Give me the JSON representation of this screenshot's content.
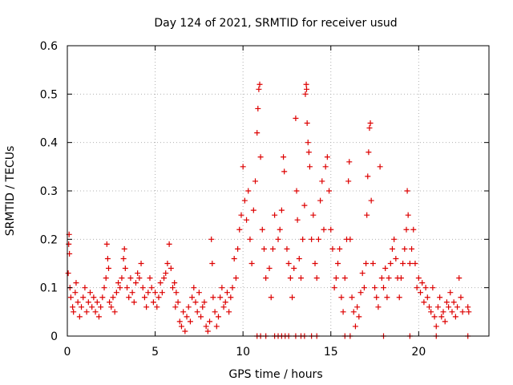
{
  "chart_data": {
    "type": "scatter",
    "title": "Day 124 of 2021, SRMTID for receiver usud",
    "xlabel": "GPS time / hours",
    "ylabel": "SRMTID / TECUs",
    "xlim": [
      0,
      24
    ],
    "ylim": [
      0,
      0.6
    ],
    "xticks": [
      0,
      5,
      10,
      15,
      20
    ],
    "xtick_labels": [
      "0",
      "5",
      "10",
      "15",
      "20"
    ],
    "yticks": [
      0,
      0.1,
      0.2,
      0.3,
      0.4,
      0.5,
      0.6
    ],
    "ytick_labels": [
      "0",
      "0.1",
      "0.2",
      "0.3",
      "0.4",
      "0.5",
      "0.6"
    ],
    "grid": true,
    "marker": "+",
    "marker_color": "#dd0000",
    "series": [
      {
        "name": "SRMTID",
        "points": [
          [
            0.05,
            0.13
          ],
          [
            0.08,
            0.19
          ],
          [
            0.1,
            0.21
          ],
          [
            0.12,
            0.17
          ],
          [
            0.15,
            0.1
          ],
          [
            0.2,
            0.08
          ],
          [
            0.3,
            0.06
          ],
          [
            0.35,
            0.05
          ],
          [
            0.45,
            0.09
          ],
          [
            0.5,
            0.11
          ],
          [
            0.6,
            0.07
          ],
          [
            0.7,
            0.04
          ],
          [
            0.8,
            0.06
          ],
          [
            0.9,
            0.08
          ],
          [
            1.0,
            0.1
          ],
          [
            1.1,
            0.05
          ],
          [
            1.2,
            0.07
          ],
          [
            1.3,
            0.09
          ],
          [
            1.4,
            0.06
          ],
          [
            1.5,
            0.08
          ],
          [
            1.6,
            0.05
          ],
          [
            1.7,
            0.07
          ],
          [
            1.8,
            0.04
          ],
          [
            1.9,
            0.06
          ],
          [
            2.0,
            0.08
          ],
          [
            2.1,
            0.1
          ],
          [
            2.2,
            0.12
          ],
          [
            2.25,
            0.19
          ],
          [
            2.3,
            0.16
          ],
          [
            2.35,
            0.14
          ],
          [
            2.4,
            0.07
          ],
          [
            2.5,
            0.06
          ],
          [
            2.6,
            0.08
          ],
          [
            2.7,
            0.05
          ],
          [
            2.8,
            0.09
          ],
          [
            2.9,
            0.11
          ],
          [
            3.0,
            0.1
          ],
          [
            3.1,
            0.12
          ],
          [
            3.2,
            0.16
          ],
          [
            3.25,
            0.18
          ],
          [
            3.3,
            0.14
          ],
          [
            3.4,
            0.1
          ],
          [
            3.5,
            0.08
          ],
          [
            3.6,
            0.12
          ],
          [
            3.7,
            0.09
          ],
          [
            3.8,
            0.07
          ],
          [
            3.9,
            0.11
          ],
          [
            4.0,
            0.13
          ],
          [
            4.1,
            0.12
          ],
          [
            4.2,
            0.15
          ],
          [
            4.3,
            0.1
          ],
          [
            4.4,
            0.08
          ],
          [
            4.5,
            0.06
          ],
          [
            4.6,
            0.09
          ],
          [
            4.7,
            0.12
          ],
          [
            4.8,
            0.1
          ],
          [
            4.9,
            0.07
          ],
          [
            5.0,
            0.09
          ],
          [
            5.1,
            0.06
          ],
          [
            5.2,
            0.08
          ],
          [
            5.3,
            0.11
          ],
          [
            5.4,
            0.09
          ],
          [
            5.5,
            0.12
          ],
          [
            5.6,
            0.13
          ],
          [
            5.7,
            0.15
          ],
          [
            5.8,
            0.19
          ],
          [
            5.9,
            0.14
          ],
          [
            6.0,
            0.1
          ],
          [
            6.1,
            0.11
          ],
          [
            6.15,
            0.06
          ],
          [
            6.2,
            0.09
          ],
          [
            6.3,
            0.07
          ],
          [
            6.4,
            0.03
          ],
          [
            6.5,
            0.02
          ],
          [
            6.6,
            0.05
          ],
          [
            6.7,
            0.01
          ],
          [
            6.8,
            0.04
          ],
          [
            6.9,
            0.06
          ],
          [
            7.0,
            0.03
          ],
          [
            7.1,
            0.08
          ],
          [
            7.2,
            0.1
          ],
          [
            7.3,
            0.07
          ],
          [
            7.4,
            0.05
          ],
          [
            7.5,
            0.09
          ],
          [
            7.6,
            0.04
          ],
          [
            7.7,
            0.06
          ],
          [
            7.8,
            0.07
          ],
          [
            7.9,
            0.02
          ],
          [
            8.0,
            0.01
          ],
          [
            8.1,
            0.03
          ],
          [
            8.2,
            0.2
          ],
          [
            8.25,
            0.15
          ],
          [
            8.3,
            0.08
          ],
          [
            8.4,
            0.05
          ],
          [
            8.5,
            0.02
          ],
          [
            8.6,
            0.04
          ],
          [
            8.7,
            0.08
          ],
          [
            8.8,
            0.1
          ],
          [
            8.9,
            0.06
          ],
          [
            9.0,
            0.07
          ],
          [
            9.1,
            0.09
          ],
          [
            9.2,
            0.05
          ],
          [
            9.3,
            0.08
          ],
          [
            9.4,
            0.1
          ],
          [
            9.5,
            0.16
          ],
          [
            9.6,
            0.12
          ],
          [
            9.7,
            0.18
          ],
          [
            9.8,
            0.22
          ],
          [
            9.9,
            0.25
          ],
          [
            10.0,
            0.35
          ],
          [
            10.1,
            0.28
          ],
          [
            10.2,
            0.24
          ],
          [
            10.3,
            0.3
          ],
          [
            10.4,
            0.2
          ],
          [
            10.5,
            0.15
          ],
          [
            10.6,
            0.26
          ],
          [
            10.7,
            0.32
          ],
          [
            10.8,
            0.42
          ],
          [
            10.85,
            0.47
          ],
          [
            10.9,
            0.51
          ],
          [
            10.95,
            0.52
          ],
          [
            11.0,
            0.37
          ],
          [
            11.1,
            0.22
          ],
          [
            11.2,
            0.18
          ],
          [
            11.3,
            0.12
          ],
          [
            11.5,
            0.14
          ],
          [
            11.6,
            0.08
          ],
          [
            11.7,
            0.18
          ],
          [
            11.8,
            0.25
          ],
          [
            12.0,
            0.2
          ],
          [
            12.1,
            0.22
          ],
          [
            12.2,
            0.26
          ],
          [
            12.3,
            0.37
          ],
          [
            12.35,
            0.34
          ],
          [
            12.5,
            0.18
          ],
          [
            12.6,
            0.15
          ],
          [
            12.7,
            0.12
          ],
          [
            12.8,
            0.08
          ],
          [
            12.9,
            0.14
          ],
          [
            13.0,
            0.45
          ],
          [
            13.05,
            0.3
          ],
          [
            13.1,
            0.24
          ],
          [
            13.2,
            0.16
          ],
          [
            13.3,
            0.12
          ],
          [
            13.4,
            0.2
          ],
          [
            13.5,
            0.27
          ],
          [
            13.55,
            0.5
          ],
          [
            13.6,
            0.52
          ],
          [
            13.62,
            0.51
          ],
          [
            13.65,
            0.44
          ],
          [
            13.7,
            0.4
          ],
          [
            13.75,
            0.38
          ],
          [
            13.8,
            0.35
          ],
          [
            13.9,
            0.2
          ],
          [
            14.0,
            0.25
          ],
          [
            14.1,
            0.15
          ],
          [
            14.2,
            0.12
          ],
          [
            14.3,
            0.2
          ],
          [
            14.4,
            0.28
          ],
          [
            14.5,
            0.32
          ],
          [
            14.6,
            0.22
          ],
          [
            14.7,
            0.35
          ],
          [
            14.8,
            0.37
          ],
          [
            14.9,
            0.3
          ],
          [
            15.0,
            0.22
          ],
          [
            15.1,
            0.18
          ],
          [
            15.2,
            0.1
          ],
          [
            15.3,
            0.12
          ],
          [
            15.4,
            0.15
          ],
          [
            15.5,
            0.18
          ],
          [
            15.6,
            0.08
          ],
          [
            15.7,
            0.05
          ],
          [
            15.8,
            0.12
          ],
          [
            15.9,
            0.2
          ],
          [
            16.0,
            0.32
          ],
          [
            16.05,
            0.36
          ],
          [
            16.1,
            0.2
          ],
          [
            16.2,
            0.08
          ],
          [
            16.3,
            0.05
          ],
          [
            16.4,
            0.02
          ],
          [
            16.5,
            0.06
          ],
          [
            16.6,
            0.04
          ],
          [
            16.7,
            0.09
          ],
          [
            16.8,
            0.13
          ],
          [
            16.9,
            0.1
          ],
          [
            17.0,
            0.15
          ],
          [
            17.05,
            0.25
          ],
          [
            17.1,
            0.33
          ],
          [
            17.15,
            0.38
          ],
          [
            17.2,
            0.43
          ],
          [
            17.25,
            0.44
          ],
          [
            17.3,
            0.28
          ],
          [
            17.4,
            0.15
          ],
          [
            17.5,
            0.1
          ],
          [
            17.6,
            0.08
          ],
          [
            17.7,
            0.06
          ],
          [
            17.8,
            0.35
          ],
          [
            17.9,
            0.12
          ],
          [
            18.0,
            0.1
          ],
          [
            18.1,
            0.14
          ],
          [
            18.2,
            0.08
          ],
          [
            18.3,
            0.12
          ],
          [
            18.4,
            0.15
          ],
          [
            18.5,
            0.18
          ],
          [
            18.6,
            0.2
          ],
          [
            18.7,
            0.16
          ],
          [
            18.8,
            0.12
          ],
          [
            18.9,
            0.08
          ],
          [
            19.0,
            0.12
          ],
          [
            19.1,
            0.15
          ],
          [
            19.2,
            0.18
          ],
          [
            19.3,
            0.22
          ],
          [
            19.35,
            0.3
          ],
          [
            19.4,
            0.25
          ],
          [
            19.5,
            0.15
          ],
          [
            19.6,
            0.18
          ],
          [
            19.7,
            0.22
          ],
          [
            19.8,
            0.15
          ],
          [
            19.9,
            0.1
          ],
          [
            20.0,
            0.12
          ],
          [
            20.1,
            0.09
          ],
          [
            20.2,
            0.11
          ],
          [
            20.3,
            0.07
          ],
          [
            20.4,
            0.1
          ],
          [
            20.5,
            0.08
          ],
          [
            20.6,
            0.06
          ],
          [
            20.7,
            0.05
          ],
          [
            20.8,
            0.1
          ],
          [
            20.9,
            0.04
          ],
          [
            21.0,
            0.02
          ],
          [
            21.1,
            0.06
          ],
          [
            21.2,
            0.08
          ],
          [
            21.3,
            0.04
          ],
          [
            21.4,
            0.05
          ],
          [
            21.5,
            0.03
          ],
          [
            21.6,
            0.07
          ],
          [
            21.7,
            0.06
          ],
          [
            21.8,
            0.09
          ],
          [
            21.9,
            0.05
          ],
          [
            22.0,
            0.07
          ],
          [
            22.1,
            0.04
          ],
          [
            22.2,
            0.06
          ],
          [
            22.3,
            0.12
          ],
          [
            22.4,
            0.08
          ],
          [
            22.5,
            0.05
          ],
          [
            22.8,
            0.06
          ],
          [
            22.85,
            0.05
          ],
          [
            10.8,
            0
          ],
          [
            11.0,
            0
          ],
          [
            11.3,
            0
          ],
          [
            11.8,
            0
          ],
          [
            12.0,
            0
          ],
          [
            12.2,
            0
          ],
          [
            12.4,
            0
          ],
          [
            12.6,
            0
          ],
          [
            13.0,
            0
          ],
          [
            13.3,
            0
          ],
          [
            13.5,
            0
          ],
          [
            13.9,
            0
          ],
          [
            14.2,
            0
          ],
          [
            15.8,
            0
          ],
          [
            16.1,
            0
          ],
          [
            18.0,
            0
          ],
          [
            19.5,
            0
          ],
          [
            21.0,
            0
          ],
          [
            22.8,
            0
          ]
        ]
      }
    ]
  }
}
